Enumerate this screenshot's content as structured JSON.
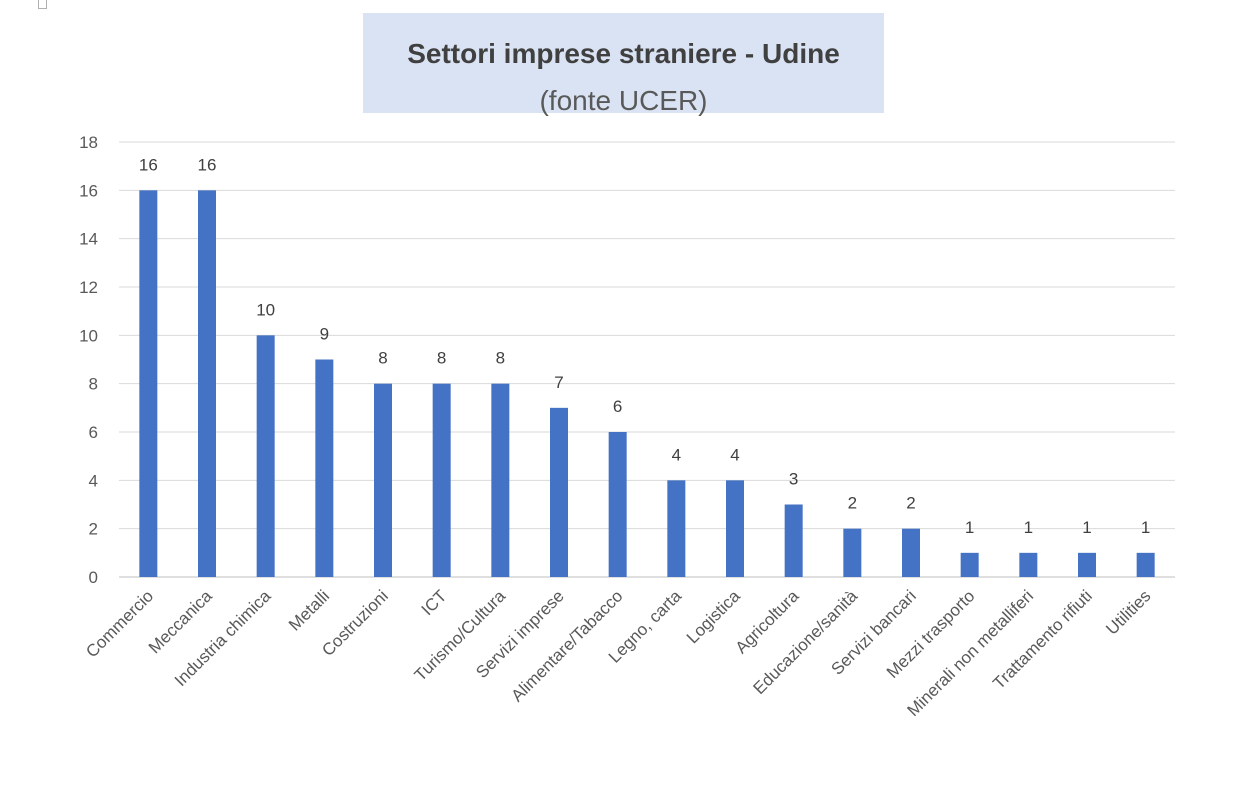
{
  "chart_data": {
    "type": "bar",
    "title": "Settori imprese straniere - Udine",
    "subtitle": "(fonte UCER)",
    "xlabel": "",
    "ylabel": "",
    "ylim": [
      0,
      18
    ],
    "yticks": [
      0,
      2,
      4,
      6,
      8,
      10,
      12,
      14,
      16,
      18
    ],
    "grid": true,
    "bar_color": "#4472c4",
    "categories": [
      "Commercio",
      "Meccanica",
      "Industria chimica",
      "Metalli",
      "Costruzioni",
      "ICT",
      "Turismo/Cultura",
      "Servizi imprese",
      "Alimentare/Tabacco",
      "Legno, carta",
      "Logistica",
      "Agricoltura",
      "Educazione/sanità",
      "Servizi bancari",
      "Mezzi trasporto",
      "Minerali non metalliferi",
      "Trattamento rifiuti",
      "Utilities"
    ],
    "values": [
      16,
      16,
      10,
      9,
      8,
      8,
      8,
      7,
      6,
      4,
      4,
      3,
      2,
      2,
      1,
      1,
      1,
      1
    ]
  }
}
